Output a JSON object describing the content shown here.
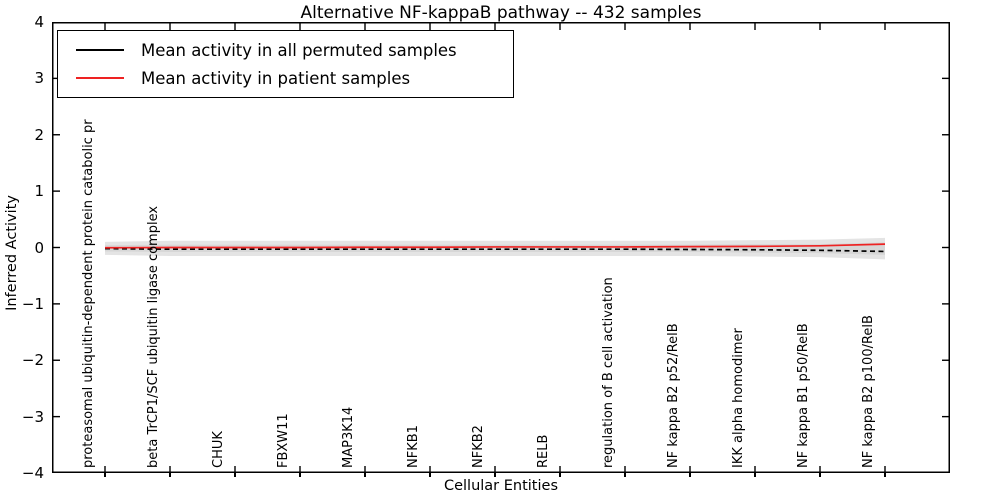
{
  "title": "Alternative NF-kappaB pathway -- 432 samples",
  "axes": {
    "xlabel": "Cellular Entities",
    "ylabel": "Inferred Activity",
    "ytick_labels": [
      "4",
      "3",
      "2",
      "1",
      "0",
      "−1",
      "−2",
      "−3",
      "−4"
    ]
  },
  "legend": {
    "items": [
      {
        "label": "Mean activity in all permuted samples",
        "color": "#000000"
      },
      {
        "label": "Mean activity in patient samples",
        "color": "#ee2222"
      }
    ]
  },
  "chart_data": {
    "type": "line",
    "title": "Alternative NF-kappaB pathway -- 432 samples",
    "xlabel": "Cellular Entities",
    "ylabel": "Inferred Activity",
    "ylim": [
      -4,
      4
    ],
    "yticks": [
      4,
      3,
      2,
      1,
      0,
      -1,
      -2,
      -3,
      -4
    ],
    "grid": false,
    "legend_position": "upper left",
    "categories": [
      "proteasomal ubiquitin-dependent protein catabolic pr",
      "beta TrCP1/SCF ubiquitin ligase complex",
      "CHUK",
      "FBXW11",
      "MAP3K14",
      "NFKB1",
      "NFKB2",
      "RELB",
      "regulation of B cell activation",
      "NF kappa B2 p52/RelB",
      "IKK alpha homodimer",
      "NF kappa B1 p50/RelB",
      "NF kappa B2 p100/RelB"
    ],
    "series": [
      {
        "name": "Mean activity in all permuted samples",
        "color": "#000000",
        "style": "dashed",
        "values": [
          -0.02,
          -0.03,
          -0.03,
          -0.03,
          -0.03,
          -0.03,
          -0.03,
          -0.03,
          -0.03,
          -0.035,
          -0.04,
          -0.05,
          -0.07
        ]
      },
      {
        "name": "Mean activity in patient samples",
        "color": "#ee2222",
        "style": "solid",
        "values": [
          -0.005,
          0.0,
          0.0,
          0.0,
          0.005,
          0.005,
          0.01,
          0.01,
          0.01,
          0.015,
          0.02,
          0.03,
          0.06
        ]
      }
    ],
    "band_outer": {
      "color": "#e4e4e4",
      "upper": [
        0.1,
        0.12,
        0.12,
        0.12,
        0.12,
        0.12,
        0.12,
        0.12,
        0.12,
        0.12,
        0.13,
        0.14,
        0.17
      ],
      "lower": [
        -0.13,
        -0.15,
        -0.15,
        -0.15,
        -0.15,
        -0.15,
        -0.15,
        -0.15,
        -0.15,
        -0.15,
        -0.16,
        -0.17,
        -0.21
      ]
    },
    "band_inner": {
      "color": "#d7d7d7",
      "upper": [
        0.04,
        0.05,
        0.05,
        0.05,
        0.05,
        0.05,
        0.05,
        0.05,
        0.05,
        0.05,
        0.06,
        0.06,
        0.09
      ],
      "lower": [
        -0.07,
        -0.08,
        -0.08,
        -0.08,
        -0.08,
        -0.08,
        -0.08,
        -0.08,
        -0.08,
        -0.08,
        -0.09,
        -0.1,
        -0.13
      ]
    }
  }
}
